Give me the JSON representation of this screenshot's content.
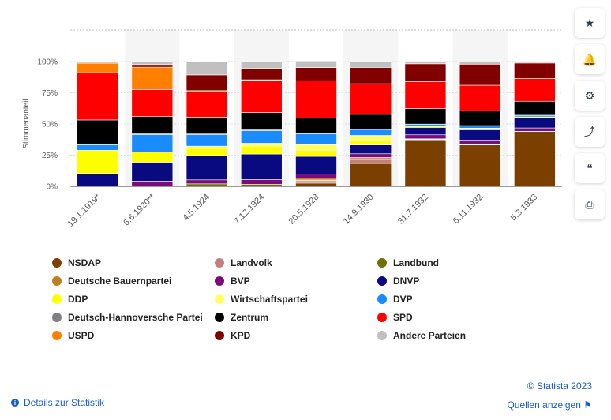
{
  "chart_data": {
    "type": "bar",
    "stacked": true,
    "ylabel": "Stimmenanteil",
    "ylim": [
      0,
      100
    ],
    "yticks": [
      "0%",
      "25%",
      "50%",
      "75%",
      "100%"
    ],
    "grid": true,
    "legend_position": "bottom",
    "categories": [
      "19.1.1919*",
      "6.6.1920**",
      "4.5.1924",
      "7.12.1924",
      "20.5.1928",
      "14.9.1930",
      "31.7.1932",
      "6.11.1932",
      "5.3.1933"
    ],
    "series": [
      {
        "name": "NSDAP",
        "color": "#7b3f00",
        "values": [
          0,
          0,
          0,
          0,
          2.6,
          18.3,
          37.3,
          33.1,
          43.9
        ]
      },
      {
        "name": "Landvolk",
        "color": "#c47e7e",
        "values": [
          0,
          0,
          0,
          0,
          1.9,
          3.2,
          0.2,
          0.3,
          0
        ]
      },
      {
        "name": "Landbund",
        "color": "#707000",
        "values": [
          0,
          0,
          2.0,
          1.6,
          0.6,
          0.6,
          0.3,
          0.3,
          0.2
        ]
      },
      {
        "name": "Deutsche Bauernpartei",
        "color": "#c08020",
        "values": [
          0,
          0,
          0,
          0,
          1.6,
          1.0,
          0.3,
          0.2,
          0
        ]
      },
      {
        "name": "BVP",
        "color": "#7b0a7b",
        "values": [
          0,
          4.2,
          3.2,
          3.8,
          3.1,
          3.0,
          3.2,
          3.1,
          2.7
        ]
      },
      {
        "name": "DNVP",
        "color": "#0a0a80",
        "values": [
          10.3,
          15.1,
          19.5,
          20.5,
          14.2,
          7.0,
          5.9,
          8.3,
          8.0
        ]
      },
      {
        "name": "DDP",
        "color": "#ffff00",
        "values": [
          18.6,
          8.3,
          5.7,
          6.3,
          4.9,
          3.8,
          1.0,
          1.0,
          0.9
        ]
      },
      {
        "name": "Wirtschaftspartei",
        "color": "#ffff66",
        "values": [
          0,
          0,
          1.8,
          2.3,
          4.5,
          3.9,
          0.4,
          0.3,
          0
        ]
      },
      {
        "name": "DVP",
        "color": "#1a8cff",
        "values": [
          4.4,
          13.9,
          9.2,
          10.1,
          8.7,
          4.7,
          1.2,
          1.9,
          1.1
        ]
      },
      {
        "name": "Deutsch-Hannoversche Partei",
        "color": "#808080",
        "values": [
          0.2,
          0.8,
          0.6,
          0.9,
          0.6,
          0.4,
          0.1,
          0.2,
          0.2
        ]
      },
      {
        "name": "Zentrum",
        "color": "#000000",
        "values": [
          19.7,
          13.6,
          13.4,
          13.6,
          12.1,
          11.8,
          12.4,
          11.9,
          11.2
        ]
      },
      {
        "name": "SPD",
        "color": "#ff0000",
        "values": [
          37.9,
          21.7,
          20.5,
          26.0,
          29.8,
          24.5,
          21.6,
          20.4,
          18.3
        ]
      },
      {
        "name": "USPD",
        "color": "#ff8000",
        "values": [
          7.6,
          17.9,
          0.8,
          0.3,
          0,
          0,
          0,
          0,
          0
        ]
      },
      {
        "name": "KPD",
        "color": "#800000",
        "values": [
          0,
          2.1,
          12.6,
          9.0,
          10.6,
          13.1,
          14.3,
          16.9,
          12.3
        ]
      },
      {
        "name": "Andere Parteien",
        "color": "#c0c0c0",
        "values": [
          1.3,
          2.4,
          10.7,
          5.6,
          5.3,
          4.7,
          2.1,
          2.4,
          1.2
        ]
      }
    ]
  },
  "legend": [
    {
      "label": "NSDAP",
      "color": "#7b3f00"
    },
    {
      "label": "Landvolk",
      "color": "#c47e7e"
    },
    {
      "label": "Landbund",
      "color": "#707000"
    },
    {
      "label": "Deutsche Bauernpartei",
      "color": "#c08020"
    },
    {
      "label": "BVP",
      "color": "#7b0a7b"
    },
    {
      "label": "DNVP",
      "color": "#0a0a80"
    },
    {
      "label": "DDP",
      "color": "#ffff00"
    },
    {
      "label": "Wirtschaftspartei",
      "color": "#ffff66"
    },
    {
      "label": "DVP",
      "color": "#1a8cff"
    },
    {
      "label": "Deutsch-Hannoversche Partei",
      "color": "#808080"
    },
    {
      "label": "Zentrum",
      "color": "#000000"
    },
    {
      "label": "SPD",
      "color": "#ff0000"
    },
    {
      "label": "USPD",
      "color": "#ff8000"
    },
    {
      "label": "KPD",
      "color": "#800000"
    },
    {
      "label": "Andere Parteien",
      "color": "#c0c0c0"
    }
  ],
  "side_buttons": [
    {
      "name": "favorite-icon",
      "glyph": "★"
    },
    {
      "name": "bell-icon",
      "glyph": "🔔"
    },
    {
      "name": "gear-icon",
      "glyph": "⚙"
    },
    {
      "name": "share-icon",
      "glyph": "⤴"
    },
    {
      "name": "quote-icon",
      "glyph": "❝"
    },
    {
      "name": "print-icon",
      "glyph": "⎙"
    }
  ],
  "footer": {
    "copyright": "© Statista 2023",
    "details_link": "Details zur Statistik",
    "sources_link": "Quellen anzeigen"
  }
}
